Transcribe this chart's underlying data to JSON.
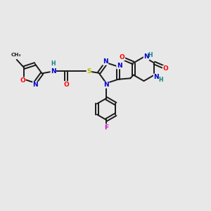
{
  "background_color": "#e8e8e8",
  "bond_color": "#1a1a1a",
  "atom_colors": {
    "N": "#0000cc",
    "O": "#ff0000",
    "S": "#b8b800",
    "F": "#cc00cc",
    "H": "#008080",
    "C": "#1a1a1a"
  },
  "figsize": [
    3.0,
    3.0
  ],
  "dpi": 100
}
